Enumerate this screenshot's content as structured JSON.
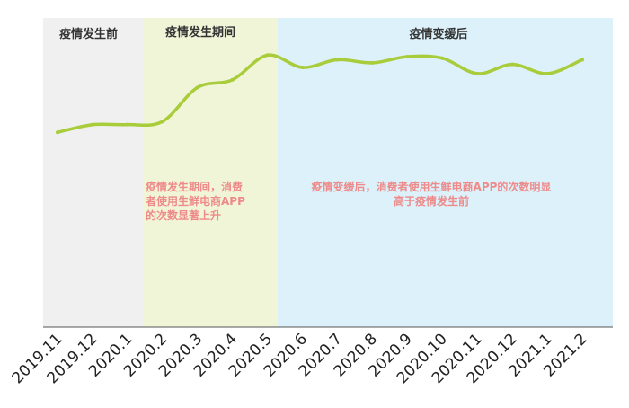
{
  "chart_data": {
    "type": "line",
    "categories": [
      "2019.11",
      "2019.12",
      "2020.1",
      "2020.2",
      "2020.3",
      "2020.4",
      "2020.5",
      "2020.6",
      "2020.7",
      "2020.8",
      "2020.9",
      "2020.10",
      "2020.11",
      "2020.12",
      "2021.1",
      "2021.2"
    ],
    "series": [
      {
        "values": [
          26,
          31,
          31,
          33,
          55,
          60,
          76,
          68,
          73,
          71,
          75,
          74,
          64,
          70,
          64,
          73
        ],
        "color": "#a8cc3a"
      }
    ],
    "ylim": [
      -100,
      100
    ],
    "grid": false,
    "phases": [
      {
        "title": "疫情发生前",
        "from": "2019.11",
        "to": "2020.1",
        "color": "#f0f0f0"
      },
      {
        "title": "疫情发生期间",
        "from": "2020.2",
        "to": "2020.5",
        "color": "#f1f5d8",
        "note": [
          "疫情发生期间，消费",
          "者使用生鲜电商APP",
          "的次数显著上升"
        ]
      },
      {
        "title": "疫情变缓后",
        "from": "2020.6",
        "to": "2021.2",
        "color": "#dcf1fa",
        "note": [
          "疫情变缓后，消费者使用生鲜电商APP的次数明显",
          "高于疫情发生前"
        ]
      }
    ],
    "note_color": "#ef8a8a",
    "axis_color": "#555555"
  }
}
